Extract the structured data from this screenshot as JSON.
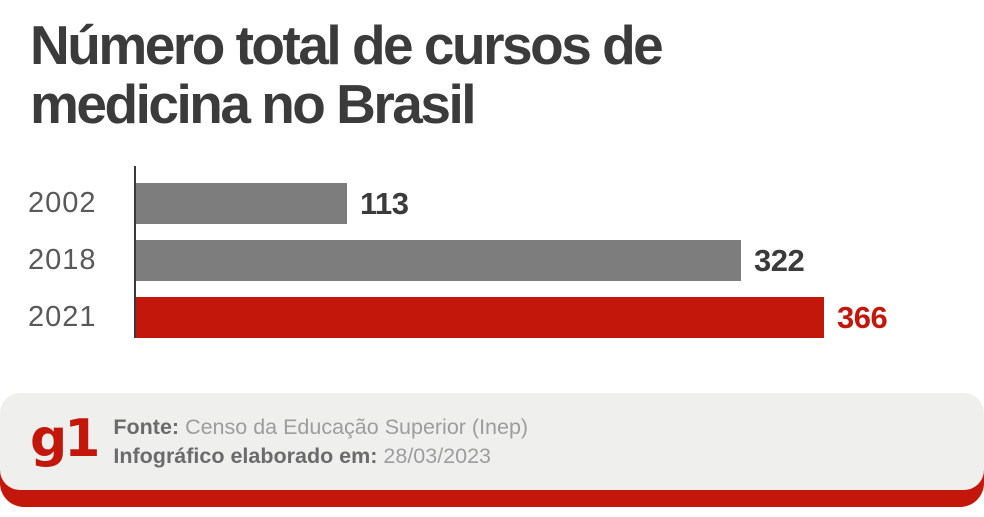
{
  "title_line1": "Número total de cursos de",
  "title_line2": "medicina no Brasil",
  "chart_data": {
    "type": "bar",
    "orientation": "horizontal",
    "title": "Número total de cursos de medicina no Brasil",
    "categories": [
      "2002",
      "2018",
      "2021"
    ],
    "values": [
      113,
      322,
      366
    ],
    "bar_colors": [
      "#7d7d7d",
      "#7d7d7d",
      "#c4170c"
    ],
    "value_label_colors": [
      "#3b3b3b",
      "#3b3b3b",
      "#c4170c"
    ],
    "xlim": [
      0,
      366
    ],
    "grid": false,
    "legend": false,
    "value_labels_shown": true,
    "axis_color": "#3a3a3a"
  },
  "footer": {
    "logo_text": "g1",
    "source_label": "Fonte:",
    "source_value": "Censo da Educação Superior (Inep)",
    "date_label": "Infográfico elaborado em:",
    "date_value": "28/03/2023"
  },
  "colors": {
    "accent_red": "#c4170c",
    "bar_gray": "#7d7d7d",
    "title_dark": "#3b3b3b",
    "year_label_gray": "#595959",
    "footer_bg": "#efefee",
    "footer_label_gray": "#6b6b6b",
    "footer_value_gray": "#9d9d9d",
    "background": "#ffffff"
  }
}
